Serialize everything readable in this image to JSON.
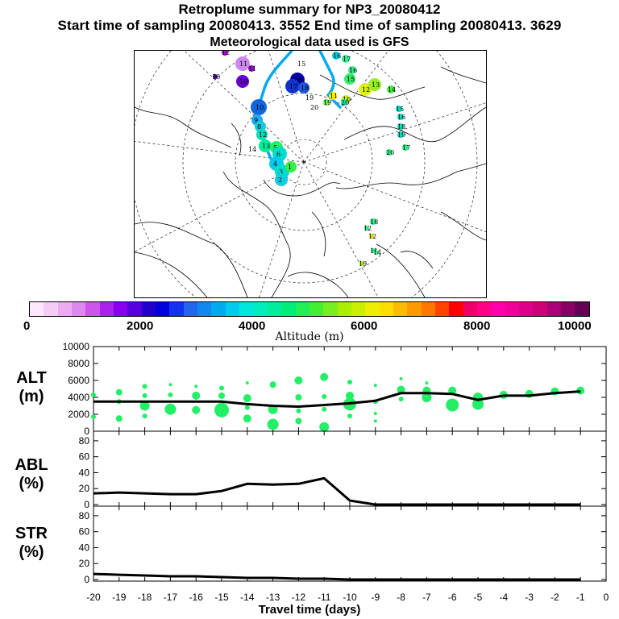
{
  "title": {
    "line1": "Retroplume summary for NP3_20080412",
    "line2": "Start time of sampling 20080413.  3552     End time of sampling 20080413.  3629",
    "line3": "Meteorological data used is GFS"
  },
  "map": {
    "trajectory_color": "#00aaee",
    "markers": [
      {
        "label": "11",
        "color": "#cc88ee",
        "r": 9
      },
      {
        "label": "11",
        "color": "#9900cc",
        "r": 4
      },
      {
        "label": "12",
        "color": "#aa00cc",
        "r": 4
      },
      {
        "label": "10",
        "color": "#6600cc",
        "r": 8
      },
      {
        "label": "10",
        "color": "#440099",
        "r": 3
      },
      {
        "label": "15",
        "color": "#ffffff",
        "r": 2
      },
      {
        "label": "16",
        "color": "#0000aa",
        "r": 9
      },
      {
        "label": "17",
        "color": "#1133cc",
        "r": 9
      },
      {
        "label": "18",
        "color": "#2255dd",
        "r": 7
      },
      {
        "label": "19",
        "color": "#ffffff",
        "r": 2
      },
      {
        "label": "20",
        "color": "#ffffff",
        "r": 2
      },
      {
        "label": "10",
        "color": "#1166dd",
        "r": 10
      },
      {
        "label": "9",
        "color": "#22aaee",
        "r": 7
      },
      {
        "label": "8",
        "color": "#11ccdd",
        "r": 7
      },
      {
        "label": "12",
        "color": "#00ddbb",
        "r": 7
      },
      {
        "label": "13",
        "color": "#00ee99",
        "r": 8
      },
      {
        "label": "14",
        "color": "#ffffff",
        "r": 2
      },
      {
        "label": "5",
        "color": "#22ee66",
        "r": 8
      },
      {
        "label": "6",
        "color": "#00ddcc",
        "r": 9
      },
      {
        "label": "4",
        "color": "#00ccee",
        "r": 9
      },
      {
        "label": "3",
        "color": "#00ddcc",
        "r": 9
      },
      {
        "label": "2",
        "color": "#11ccdd",
        "r": 8
      },
      {
        "label": "1",
        "color": "#33ee44",
        "r": 7
      },
      {
        "label": "16",
        "color": "#00ccdd",
        "r": 5
      },
      {
        "label": "17",
        "color": "#33ee99",
        "r": 5
      },
      {
        "label": "16",
        "color": "#33ee88",
        "r": 5
      },
      {
        "label": "15",
        "color": "#33ee66",
        "r": 7
      },
      {
        "label": "12",
        "color": "#ddee22",
        "r": 8
      },
      {
        "label": "13",
        "color": "#99ee22",
        "r": 8
      },
      {
        "label": "14",
        "color": "#44ee44",
        "r": 5
      },
      {
        "label": "11",
        "color": "#ffee00",
        "r": 5
      },
      {
        "label": "10",
        "color": "#ccee00",
        "r": 5
      },
      {
        "label": "19",
        "color": "#66ee44",
        "r": 4
      },
      {
        "label": "20",
        "color": "#00eeaa",
        "r": 4
      },
      {
        "label": "15",
        "color": "#00ddbb",
        "r": 4
      },
      {
        "label": "16",
        "color": "#00ddbb",
        "r": 4
      },
      {
        "label": "18",
        "color": "#00ddbb",
        "r": 4
      },
      {
        "label": "19",
        "color": "#00ddbb",
        "r": 4
      },
      {
        "label": "17",
        "color": "#33ee88",
        "r": 4
      },
      {
        "label": "20",
        "color": "#33ee88",
        "r": 4
      },
      {
        "label": "18",
        "color": "#33ee88",
        "r": 4
      },
      {
        "label": "11",
        "color": "#33ee88",
        "r": 3
      },
      {
        "label": "12",
        "color": "#33ee88",
        "r": 3
      },
      {
        "label": "14",
        "color": "#33ee88",
        "r": 3
      },
      {
        "label": "12",
        "color": "#dddd00",
        "r": 3
      },
      {
        "label": "19",
        "color": "#aaee00",
        "r": 3
      }
    ]
  },
  "colorbar": {
    "title": "Altitude (m)",
    "tick_labels": [
      "0",
      "2000",
      "4000",
      "6000",
      "8000",
      "10000"
    ],
    "colors": [
      "#ffe6ff",
      "#f5ccf5",
      "#eeaaee",
      "#dd88ee",
      "#cc55ee",
      "#aa22ee",
      "#8800ee",
      "#5500dd",
      "#2200cc",
      "#0000dd",
      "#1133ee",
      "#2266ee",
      "#1188ee",
      "#00aaee",
      "#00ccee",
      "#00e6dd",
      "#00eebb",
      "#00ee99",
      "#00ee77",
      "#22ee55",
      "#44ee33",
      "#77ee22",
      "#aaee00",
      "#ccee00",
      "#eeee00",
      "#ffdd00",
      "#ffbb00",
      "#ff9900",
      "#ff7700",
      "#ff4400",
      "#ff0000",
      "#ee0066",
      "#ff0088",
      "#ff00aa",
      "#ee0099",
      "#dd0088",
      "#cc0077",
      "#aa0077",
      "#880066",
      "#660055"
    ]
  },
  "chart_data": [
    {
      "type": "scatter+line",
      "ylabel": "ALT\n(m)",
      "ylim": [
        0,
        10000
      ],
      "yticks": [
        "0",
        "2000",
        "4000",
        "6000",
        "8000",
        "10000"
      ],
      "x": [
        -20,
        -19,
        -18,
        -17,
        -16,
        -15,
        -14,
        -13,
        -12,
        -11,
        -10,
        -9,
        -8,
        -7,
        -6,
        -5,
        -4,
        -3,
        -2,
        -1
      ],
      "median": [
        3500,
        3500,
        3500,
        3500,
        3500,
        3500,
        3200,
        3000,
        2900,
        3100,
        3300,
        3600,
        4500,
        4500,
        4400,
        3700,
        4200,
        4200,
        4500,
        4700
      ],
      "points": [
        {
          "x": -20,
          "y": 4300,
          "r": 3
        },
        {
          "x": -20,
          "y": 1700,
          "r": 3
        },
        {
          "x": -19,
          "y": 4600,
          "r": 4
        },
        {
          "x": -19,
          "y": 1500,
          "r": 4
        },
        {
          "x": -19,
          "y": 3500,
          "r": 3
        },
        {
          "x": -18,
          "y": 5300,
          "r": 3
        },
        {
          "x": -18,
          "y": 4200,
          "r": 3
        },
        {
          "x": -18,
          "y": 3000,
          "r": 6
        },
        {
          "x": -18,
          "y": 1800,
          "r": 3
        },
        {
          "x": -17,
          "y": 5500,
          "r": 2
        },
        {
          "x": -17,
          "y": 4300,
          "r": 3
        },
        {
          "x": -17,
          "y": 2600,
          "r": 7
        },
        {
          "x": -16,
          "y": 5300,
          "r": 2
        },
        {
          "x": -16,
          "y": 4200,
          "r": 5
        },
        {
          "x": -16,
          "y": 2500,
          "r": 5
        },
        {
          "x": -15,
          "y": 5100,
          "r": 3
        },
        {
          "x": -15,
          "y": 4200,
          "r": 4
        },
        {
          "x": -15,
          "y": 2500,
          "r": 9
        },
        {
          "x": -14,
          "y": 5700,
          "r": 2
        },
        {
          "x": -14,
          "y": 3900,
          "r": 5
        },
        {
          "x": -14,
          "y": 2800,
          "r": 3
        },
        {
          "x": -14,
          "y": 1500,
          "r": 5
        },
        {
          "x": -13,
          "y": 5500,
          "r": 4
        },
        {
          "x": -13,
          "y": 2600,
          "r": 6
        },
        {
          "x": -13,
          "y": 800,
          "r": 7
        },
        {
          "x": -12,
          "y": 6000,
          "r": 5
        },
        {
          "x": -12,
          "y": 4000,
          "r": 4
        },
        {
          "x": -12,
          "y": 2400,
          "r": 3
        },
        {
          "x": -12,
          "y": 1200,
          "r": 4
        },
        {
          "x": -11,
          "y": 6400,
          "r": 5
        },
        {
          "x": -11,
          "y": 4100,
          "r": 3
        },
        {
          "x": -11,
          "y": 2600,
          "r": 3
        },
        {
          "x": -11,
          "y": 500,
          "r": 6
        },
        {
          "x": -10,
          "y": 5800,
          "r": 3
        },
        {
          "x": -10,
          "y": 4200,
          "r": 5
        },
        {
          "x": -10,
          "y": 3200,
          "r": 8
        },
        {
          "x": -10,
          "y": 1800,
          "r": 3
        },
        {
          "x": -9,
          "y": 5400,
          "r": 2
        },
        {
          "x": -9,
          "y": 3500,
          "r": 3
        },
        {
          "x": -9,
          "y": 2100,
          "r": 2
        },
        {
          "x": -9,
          "y": 1200,
          "r": 2
        },
        {
          "x": -8,
          "y": 6200,
          "r": 2
        },
        {
          "x": -8,
          "y": 4900,
          "r": 5
        },
        {
          "x": -8,
          "y": 3800,
          "r": 3
        },
        {
          "x": -7,
          "y": 5700,
          "r": 2
        },
        {
          "x": -7,
          "y": 4800,
          "r": 5
        },
        {
          "x": -7,
          "y": 4000,
          "r": 6
        },
        {
          "x": -6,
          "y": 4800,
          "r": 5
        },
        {
          "x": -6,
          "y": 3100,
          "r": 8
        },
        {
          "x": -5,
          "y": 4000,
          "r": 6
        },
        {
          "x": -5,
          "y": 3200,
          "r": 7
        },
        {
          "x": -4,
          "y": 4300,
          "r": 5
        },
        {
          "x": -3,
          "y": 4400,
          "r": 5
        },
        {
          "x": -2,
          "y": 4700,
          "r": 5
        },
        {
          "x": -1,
          "y": 4800,
          "r": 5
        }
      ]
    },
    {
      "type": "line",
      "ylabel": "ABL\n(%)",
      "ylim": [
        0,
        90
      ],
      "yticks": [
        "0",
        "20",
        "40",
        "60",
        "80"
      ],
      "x": [
        -20,
        -19,
        -18,
        -17,
        -16,
        -15,
        -14,
        -13,
        -12,
        -11,
        -10,
        -9,
        -8,
        -7,
        -6,
        -5,
        -4,
        -3,
        -2,
        -1
      ],
      "values": [
        14,
        15,
        14,
        13,
        13,
        17,
        26,
        25,
        26,
        33,
        5,
        0,
        0,
        0,
        0,
        0,
        0,
        0,
        0,
        0
      ]
    },
    {
      "type": "line",
      "ylabel": "STR\n(%)",
      "ylim": [
        0,
        90
      ],
      "yticks": [
        "0",
        "20",
        "40",
        "60",
        "80"
      ],
      "x": [
        -20,
        -19,
        -18,
        -17,
        -16,
        -15,
        -14,
        -13,
        -12,
        -11,
        -10,
        -9,
        -8,
        -7,
        -6,
        -5,
        -4,
        -3,
        -2,
        -1
      ],
      "values": [
        7,
        6,
        5,
        4,
        4,
        3,
        2,
        2,
        1,
        1,
        0,
        0,
        0,
        0,
        0,
        0,
        0,
        0,
        0,
        0
      ]
    }
  ],
  "xaxis": {
    "label": "Travel time (days)",
    "ticks": [
      "-20",
      "-19",
      "-18",
      "-17",
      "-16",
      "-15",
      "-14",
      "-13",
      "-12",
      "-11",
      "-10",
      "-9",
      "-8",
      "-7",
      "-6",
      "-5",
      "-4",
      "-3",
      "-2",
      "-1",
      "0"
    ]
  },
  "point_color": "#22ee66"
}
